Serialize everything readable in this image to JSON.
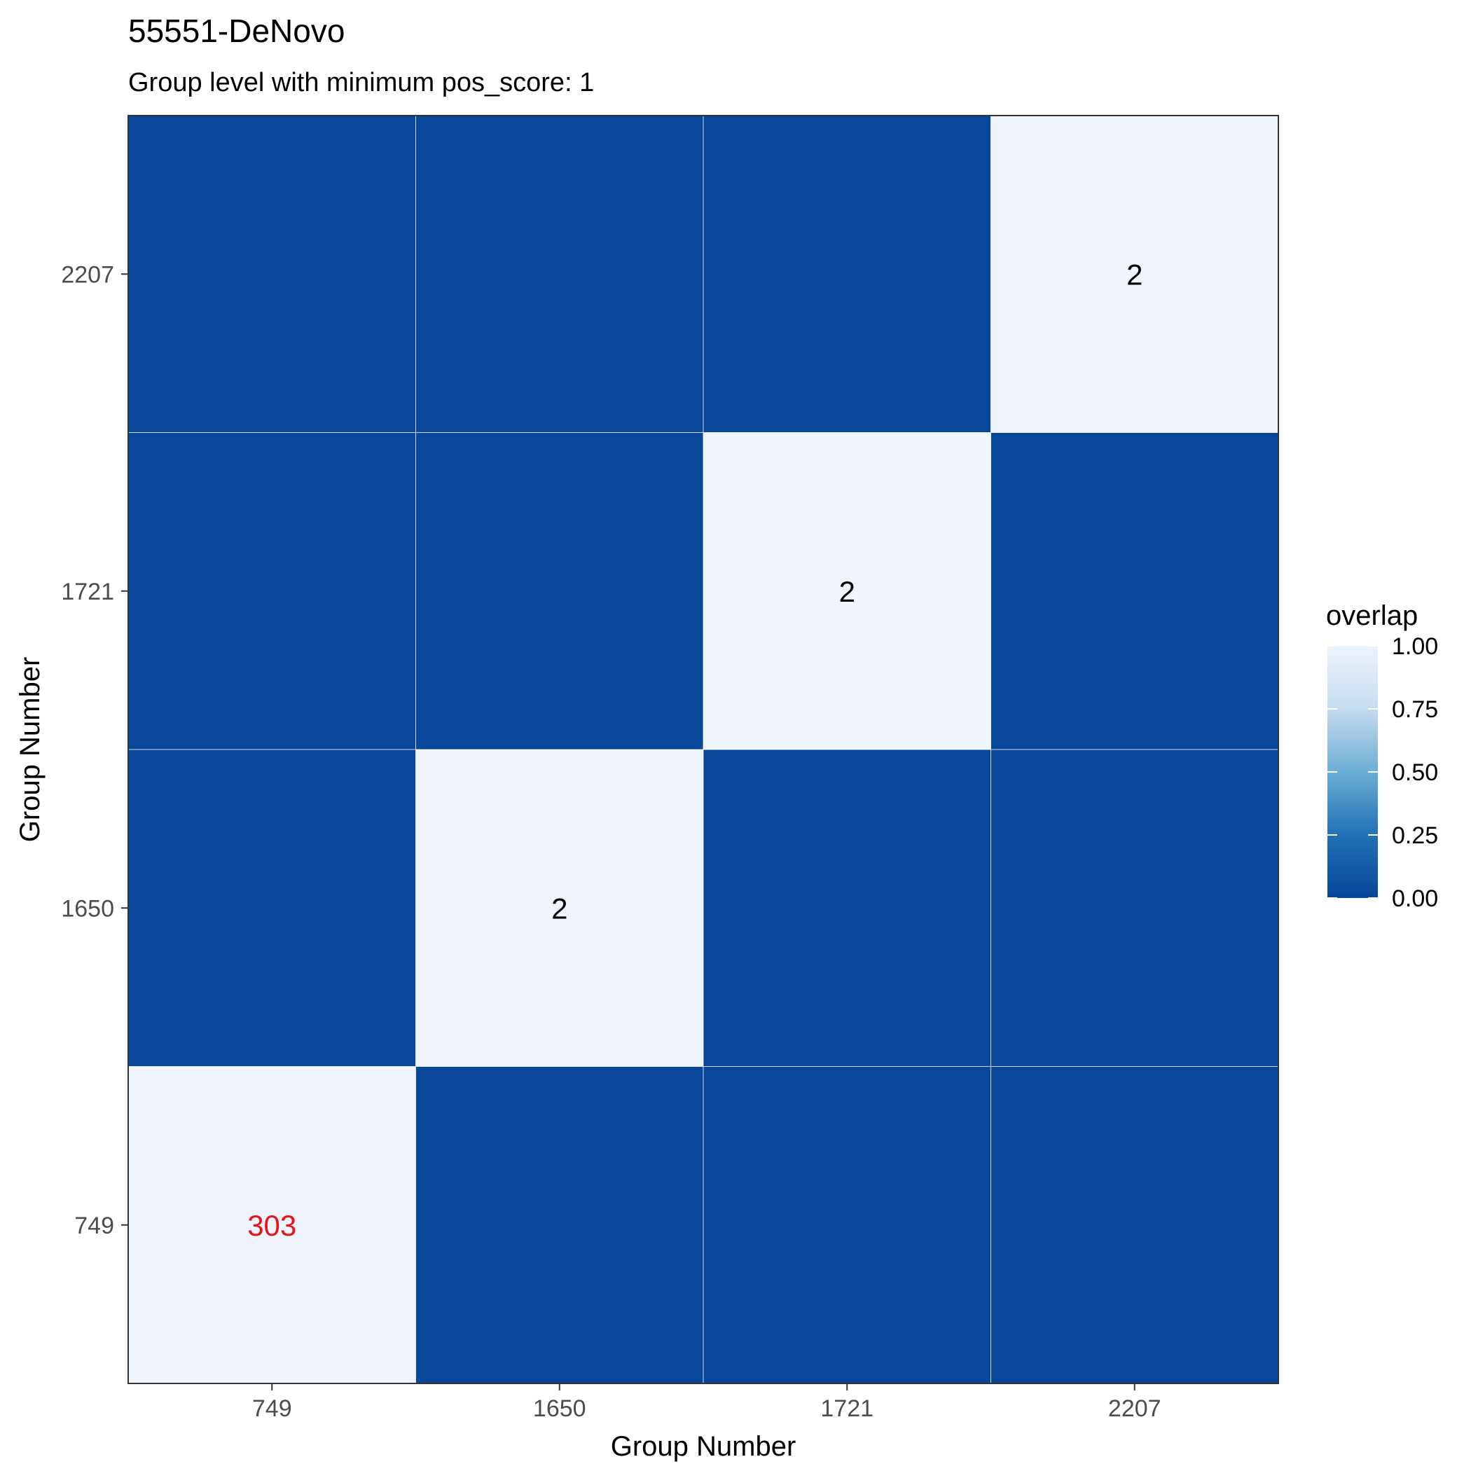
{
  "chart_data": {
    "type": "heatmap",
    "title": "55551-DeNovo",
    "subtitle": "Group level with minimum pos_score: 1",
    "xlabel": "Group Number",
    "ylabel": "Group Number",
    "x_categories": [
      "749",
      "1650",
      "1721",
      "2207"
    ],
    "y_categories": [
      "749",
      "1650",
      "1721",
      "2207"
    ],
    "cells": [
      {
        "x": "749",
        "y": "749",
        "overlap": 1,
        "label": "303",
        "label_color": "#e8141c"
      },
      {
        "x": "1650",
        "y": "749",
        "overlap": 0,
        "label": ""
      },
      {
        "x": "1721",
        "y": "749",
        "overlap": 0,
        "label": ""
      },
      {
        "x": "2207",
        "y": "749",
        "overlap": 0,
        "label": ""
      },
      {
        "x": "749",
        "y": "1650",
        "overlap": 0,
        "label": ""
      },
      {
        "x": "1650",
        "y": "1650",
        "overlap": 1,
        "label": "2",
        "label_color": "#000000"
      },
      {
        "x": "1721",
        "y": "1650",
        "overlap": 0,
        "label": ""
      },
      {
        "x": "2207",
        "y": "1650",
        "overlap": 0,
        "label": ""
      },
      {
        "x": "749",
        "y": "1721",
        "overlap": 0,
        "label": ""
      },
      {
        "x": "1650",
        "y": "1721",
        "overlap": 0,
        "label": ""
      },
      {
        "x": "1721",
        "y": "1721",
        "overlap": 1,
        "label": "2",
        "label_color": "#000000"
      },
      {
        "x": "2207",
        "y": "1721",
        "overlap": 0,
        "label": ""
      },
      {
        "x": "749",
        "y": "2207",
        "overlap": 0,
        "label": ""
      },
      {
        "x": "1650",
        "y": "2207",
        "overlap": 0,
        "label": ""
      },
      {
        "x": "1721",
        "y": "2207",
        "overlap": 0,
        "label": ""
      },
      {
        "x": "2207",
        "y": "2207",
        "overlap": 1,
        "label": "2",
        "label_color": "#000000"
      }
    ],
    "legend": {
      "title": "overlap",
      "placement": "right",
      "ticks": [
        "0.00",
        "0.25",
        "0.50",
        "0.75",
        "1.00"
      ],
      "range": [
        0,
        1
      ],
      "low_color": "#08479a",
      "high_color": "#eef3fc"
    },
    "grid": true
  }
}
